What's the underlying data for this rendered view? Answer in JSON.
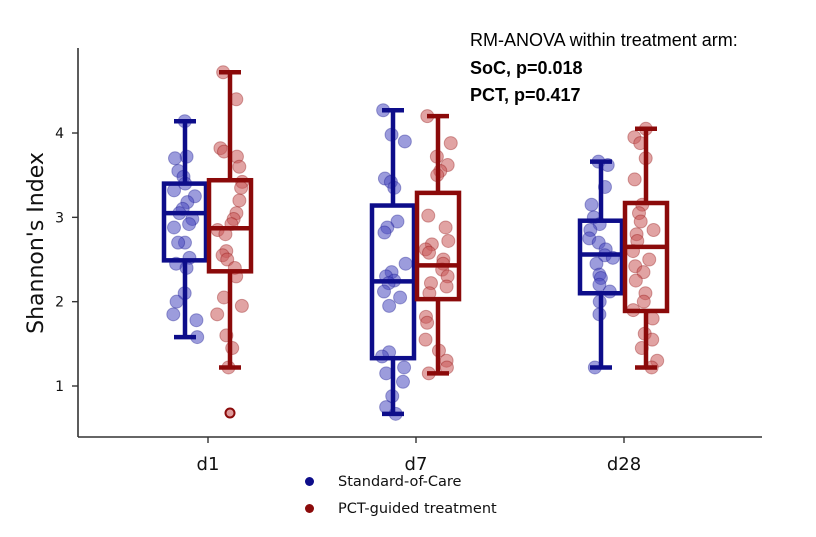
{
  "annotation": {
    "line1": "RM-ANOVA within treatment arm:",
    "line2": "SoC, p=0.018",
    "line3": "PCT, p=0.417"
  },
  "legend": [
    {
      "label": "Standard-of-Care",
      "color": "#0d0d8a"
    },
    {
      "label": "PCT-guided treatment",
      "color": "#8b0a0a"
    }
  ],
  "chart_data": {
    "type": "box",
    "title": "",
    "xlabel": "",
    "ylabel": "Shannon's Index",
    "categories": [
      "d1",
      "d7",
      "d28"
    ],
    "yticks": [
      1,
      2,
      3,
      4
    ],
    "ylim": [
      0.4,
      4.95
    ],
    "grid": false,
    "legend_position": "bottom-center",
    "series": [
      {
        "name": "Standard-of-Care",
        "color": "#0d0d8a",
        "point_color": "#4a4ac0",
        "boxes": [
          {
            "category": "d1",
            "whisker_low": 1.58,
            "q1": 2.49,
            "median": 3.05,
            "q3": 3.4,
            "whisker_high": 4.14,
            "outliers": [],
            "points": [
              4.14,
              3.72,
              3.7,
              3.55,
              3.48,
              3.4,
              3.32,
              3.25,
              3.18,
              3.1,
              3.05,
              2.98,
              2.92,
              2.88,
              2.7,
              2.7,
              2.52,
              2.45,
              2.4,
              2.1,
              2.0,
              1.85,
              1.78,
              1.58
            ]
          },
          {
            "category": "d7",
            "whisker_low": 0.67,
            "q1": 1.33,
            "median": 2.24,
            "q3": 3.14,
            "whisker_high": 4.27,
            "outliers": [],
            "points": [
              4.27,
              3.98,
              3.9,
              3.46,
              3.42,
              3.35,
              2.95,
              2.88,
              2.82,
              2.45,
              2.35,
              2.3,
              2.25,
              2.22,
              2.12,
              2.05,
              1.95,
              1.4,
              1.35,
              1.22,
              1.15,
              1.05,
              0.88,
              0.75,
              0.67
            ]
          },
          {
            "category": "d28",
            "whisker_low": 1.22,
            "q1": 2.1,
            "median": 2.56,
            "q3": 2.96,
            "whisker_high": 3.66,
            "outliers": [],
            "points": [
              3.66,
              3.62,
              3.36,
              3.15,
              3.0,
              2.92,
              2.85,
              2.75,
              2.7,
              2.62,
              2.55,
              2.52,
              2.45,
              2.32,
              2.28,
              2.2,
              2.12,
              2.0,
              1.85,
              1.22
            ]
          }
        ]
      },
      {
        "name": "PCT-guided treatment",
        "color": "#8b0a0a",
        "point_color": "#c85858",
        "boxes": [
          {
            "category": "d1",
            "whisker_low": 1.22,
            "q1": 2.36,
            "median": 2.87,
            "q3": 3.44,
            "whisker_high": 4.72,
            "outliers": [
              0.68
            ],
            "points": [
              4.72,
              4.4,
              3.82,
              3.78,
              3.72,
              3.6,
              3.42,
              3.35,
              3.2,
              3.05,
              2.98,
              2.92,
              2.85,
              2.8,
              2.6,
              2.55,
              2.5,
              2.4,
              2.3,
              2.05,
              1.95,
              1.85,
              1.6,
              1.45,
              1.22
            ]
          },
          {
            "category": "d7",
            "whisker_low": 1.15,
            "q1": 2.03,
            "median": 2.43,
            "q3": 3.29,
            "whisker_high": 4.2,
            "outliers": [],
            "points": [
              4.2,
              3.88,
              3.72,
              3.62,
              3.55,
              3.5,
              3.02,
              2.88,
              2.72,
              2.68,
              2.62,
              2.58,
              2.5,
              2.45,
              2.38,
              2.3,
              2.22,
              2.18,
              2.1,
              1.82,
              1.75,
              1.55,
              1.42,
              1.3,
              1.22,
              1.15
            ]
          },
          {
            "category": "d28",
            "whisker_low": 1.22,
            "q1": 1.89,
            "median": 2.65,
            "q3": 3.17,
            "whisker_high": 4.05,
            "outliers": [],
            "points": [
              4.05,
              3.95,
              3.88,
              3.7,
              3.45,
              3.15,
              3.05,
              2.95,
              2.85,
              2.8,
              2.72,
              2.6,
              2.5,
              2.42,
              2.35,
              2.25,
              2.1,
              2.0,
              1.9,
              1.8,
              1.62,
              1.55,
              1.45,
              1.3,
              1.22
            ]
          }
        ]
      }
    ]
  }
}
